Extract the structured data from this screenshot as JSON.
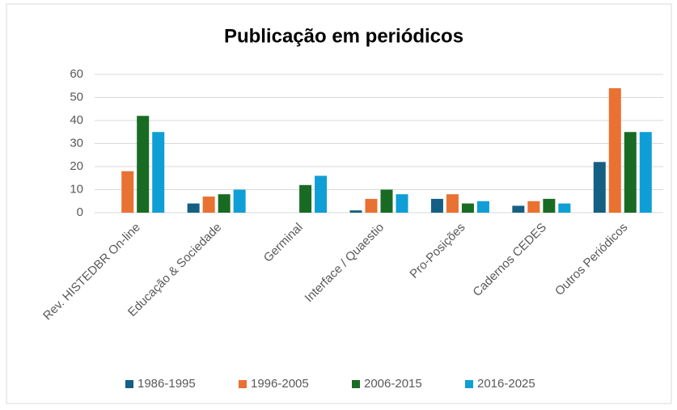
{
  "chart_data": {
    "type": "bar",
    "title": "Publicação em periódicos",
    "categories": [
      "Rev. HISTEDBR On-line",
      "Educação & Sociedade",
      "Germinal",
      "Interface / Quaestio",
      "Pro-Posições",
      "Cadernos CEDES",
      "Outros Periódicos"
    ],
    "series": [
      {
        "name": "1986-1995",
        "color": "#156082",
        "values": [
          0,
          4,
          0,
          1,
          6,
          3,
          22
        ]
      },
      {
        "name": "1996-2005",
        "color": "#e97132",
        "values": [
          18,
          7,
          0,
          6,
          8,
          5,
          54
        ]
      },
      {
        "name": "2006-2015",
        "color": "#196b24",
        "values": [
          42,
          8,
          12,
          10,
          4,
          6,
          35
        ]
      },
      {
        "name": "2016-2025",
        "color": "#0f9ed5",
        "values": [
          35,
          10,
          16,
          8,
          5,
          4,
          35
        ]
      }
    ],
    "ylim": [
      0,
      60
    ],
    "yticks": [
      0,
      10,
      20,
      30,
      40,
      50,
      60
    ],
    "grid": true,
    "legend": "bottom"
  }
}
